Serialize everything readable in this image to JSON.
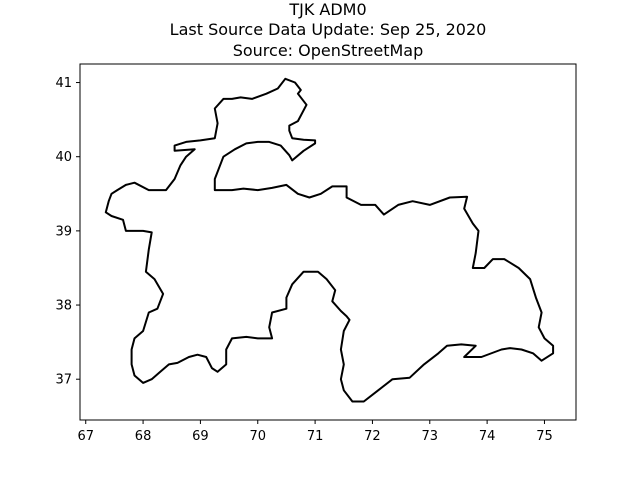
{
  "chart_data": {
    "type": "map",
    "title_lines": [
      "TJK ADM0",
      "Last Source Data Update: Sep 25, 2020",
      "Source: OpenStreetMap"
    ],
    "xlabel": "",
    "ylabel": "",
    "xlim": [
      66.9,
      75.55
    ],
    "ylim": [
      36.45,
      41.25
    ],
    "x_ticks": [
      67,
      68,
      69,
      70,
      71,
      72,
      73,
      74,
      75
    ],
    "y_ticks": [
      37,
      38,
      39,
      40,
      41
    ],
    "grid": false,
    "line_color": "#000000",
    "outline": [
      [
        67.35,
        39.25
      ],
      [
        67.45,
        39.2
      ],
      [
        67.65,
        39.15
      ],
      [
        67.7,
        39.0
      ],
      [
        68.0,
        39.0
      ],
      [
        68.15,
        38.98
      ],
      [
        68.1,
        38.75
      ],
      [
        68.05,
        38.45
      ],
      [
        68.2,
        38.35
      ],
      [
        68.35,
        38.15
      ],
      [
        68.25,
        37.95
      ],
      [
        68.1,
        37.9
      ],
      [
        68.0,
        37.65
      ],
      [
        67.85,
        37.55
      ],
      [
        67.8,
        37.4
      ],
      [
        67.8,
        37.2
      ],
      [
        67.85,
        37.05
      ],
      [
        68.0,
        36.95
      ],
      [
        68.15,
        37.0
      ],
      [
        68.3,
        37.1
      ],
      [
        68.45,
        37.2
      ],
      [
        68.6,
        37.22
      ],
      [
        68.8,
        37.3
      ],
      [
        68.95,
        37.33
      ],
      [
        69.1,
        37.3
      ],
      [
        69.2,
        37.15
      ],
      [
        69.3,
        37.1
      ],
      [
        69.45,
        37.2
      ],
      [
        69.45,
        37.4
      ],
      [
        69.55,
        37.55
      ],
      [
        69.8,
        37.57
      ],
      [
        70.0,
        37.55
      ],
      [
        70.25,
        37.55
      ],
      [
        70.2,
        37.7
      ],
      [
        70.25,
        37.9
      ],
      [
        70.5,
        37.95
      ],
      [
        70.5,
        38.1
      ],
      [
        70.6,
        38.28
      ],
      [
        70.8,
        38.45
      ],
      [
        71.05,
        38.45
      ],
      [
        71.2,
        38.35
      ],
      [
        71.35,
        38.2
      ],
      [
        71.3,
        38.05
      ],
      [
        71.45,
        37.92
      ],
      [
        71.55,
        37.85
      ],
      [
        71.6,
        37.8
      ],
      [
        71.5,
        37.65
      ],
      [
        71.45,
        37.4
      ],
      [
        71.5,
        37.2
      ],
      [
        71.45,
        37.0
      ],
      [
        71.5,
        36.85
      ],
      [
        71.65,
        36.7
      ],
      [
        71.85,
        36.7
      ],
      [
        72.1,
        36.85
      ],
      [
        72.35,
        37.0
      ],
      [
        72.65,
        37.02
      ],
      [
        72.9,
        37.2
      ],
      [
        73.15,
        37.35
      ],
      [
        73.3,
        37.45
      ],
      [
        73.55,
        37.47
      ],
      [
        73.8,
        37.45
      ],
      [
        73.6,
        37.3
      ],
      [
        73.9,
        37.3
      ],
      [
        74.25,
        37.4
      ],
      [
        74.4,
        37.42
      ],
      [
        74.6,
        37.4
      ],
      [
        74.8,
        37.35
      ],
      [
        74.95,
        37.25
      ],
      [
        75.15,
        37.35
      ],
      [
        75.15,
        37.45
      ],
      [
        75.0,
        37.55
      ],
      [
        74.9,
        37.7
      ],
      [
        74.95,
        37.9
      ],
      [
        74.85,
        38.1
      ],
      [
        74.75,
        38.35
      ],
      [
        74.55,
        38.5
      ],
      [
        74.3,
        38.62
      ],
      [
        74.1,
        38.62
      ],
      [
        73.95,
        38.5
      ],
      [
        73.75,
        38.5
      ],
      [
        73.8,
        38.7
      ],
      [
        73.85,
        39.0
      ],
      [
        73.75,
        39.1
      ],
      [
        73.6,
        39.3
      ],
      [
        73.65,
        39.46
      ],
      [
        73.35,
        39.45
      ],
      [
        73.0,
        39.35
      ],
      [
        72.7,
        39.4
      ],
      [
        72.45,
        39.35
      ],
      [
        72.2,
        39.22
      ],
      [
        72.05,
        39.35
      ],
      [
        71.8,
        39.35
      ],
      [
        71.55,
        39.45
      ],
      [
        71.55,
        39.6
      ],
      [
        71.3,
        39.6
      ],
      [
        71.1,
        39.5
      ],
      [
        70.9,
        39.45
      ],
      [
        70.7,
        39.5
      ],
      [
        70.5,
        39.62
      ],
      [
        70.25,
        39.58
      ],
      [
        70.0,
        39.55
      ],
      [
        69.75,
        39.57
      ],
      [
        69.55,
        39.55
      ],
      [
        69.25,
        39.55
      ],
      [
        69.25,
        39.7
      ],
      [
        69.4,
        40.0
      ],
      [
        69.6,
        40.1
      ],
      [
        69.8,
        40.18
      ],
      [
        70.0,
        40.2
      ],
      [
        70.2,
        40.2
      ],
      [
        70.4,
        40.15
      ],
      [
        70.55,
        40.02
      ],
      [
        70.6,
        39.95
      ],
      [
        70.8,
        40.08
      ],
      [
        71.0,
        40.18
      ],
      [
        71.0,
        40.22
      ],
      [
        70.8,
        40.23
      ],
      [
        70.6,
        40.25
      ],
      [
        70.55,
        40.35
      ],
      [
        70.55,
        40.42
      ],
      [
        70.7,
        40.48
      ],
      [
        70.85,
        40.7
      ],
      [
        70.7,
        40.85
      ],
      [
        70.75,
        40.9
      ],
      [
        70.65,
        41.0
      ],
      [
        70.48,
        41.05
      ],
      [
        70.35,
        40.92
      ],
      [
        70.15,
        40.85
      ],
      [
        69.9,
        40.78
      ],
      [
        69.7,
        40.8
      ],
      [
        69.55,
        40.78
      ],
      [
        69.4,
        40.78
      ],
      [
        69.25,
        40.65
      ],
      [
        69.3,
        40.45
      ],
      [
        69.25,
        40.25
      ],
      [
        69.0,
        40.22
      ],
      [
        68.75,
        40.2
      ],
      [
        68.55,
        40.15
      ],
      [
        68.55,
        40.08
      ],
      [
        68.9,
        40.1
      ],
      [
        68.75,
        40.0
      ],
      [
        68.65,
        39.88
      ],
      [
        68.55,
        39.7
      ],
      [
        68.4,
        39.55
      ],
      [
        68.1,
        39.55
      ],
      [
        67.85,
        39.65
      ],
      [
        67.7,
        39.62
      ],
      [
        67.55,
        39.55
      ],
      [
        67.45,
        39.5
      ],
      [
        67.4,
        39.4
      ],
      [
        67.35,
        39.25
      ]
    ]
  }
}
